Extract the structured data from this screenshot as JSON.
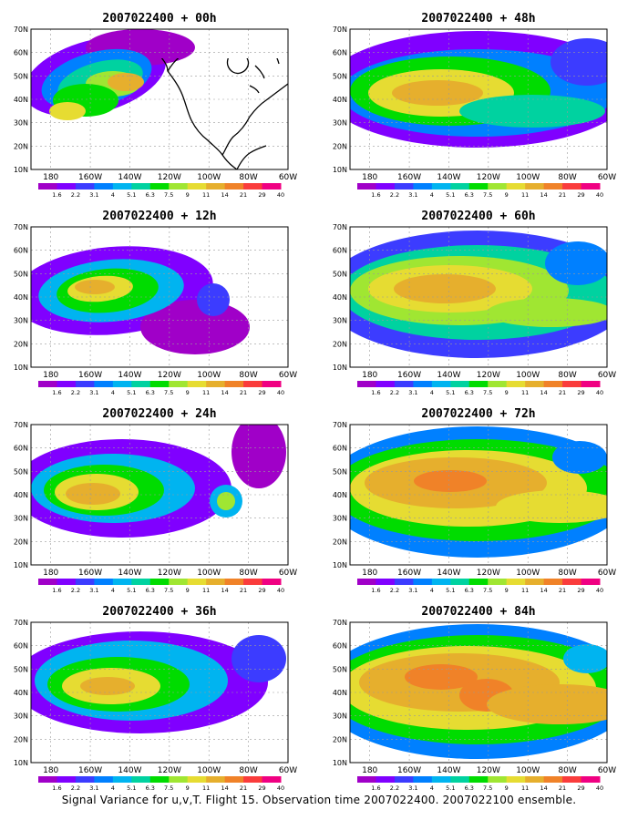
{
  "figure": {
    "caption": "Signal Variance for u,v,T. Flight 15. Observation time 2007022400. 2007022100 ensemble."
  },
  "panels": [
    {
      "title": "2007022400 + 00h",
      "lead_hours": 0
    },
    {
      "title": "2007022400 + 12h",
      "lead_hours": 12
    },
    {
      "title": "2007022400 + 24h",
      "lead_hours": 24
    },
    {
      "title": "2007022400 + 36h",
      "lead_hours": 36
    },
    {
      "title": "2007022400 + 48h",
      "lead_hours": 48
    },
    {
      "title": "2007022400 + 60h",
      "lead_hours": 60
    },
    {
      "title": "2007022400 + 72h",
      "lead_hours": 72
    },
    {
      "title": "2007022400 + 84h",
      "lead_hours": 84
    }
  ],
  "map": {
    "lat_labels": [
      "70N",
      "60N",
      "50N",
      "40N",
      "30N",
      "20N",
      "10N"
    ],
    "lat_values": [
      70,
      60,
      50,
      40,
      30,
      20,
      10
    ],
    "lon_labels": [
      "180",
      "160W",
      "140W",
      "120W",
      "100W",
      "80W",
      "60W"
    ],
    "lon_values": [
      180,
      160,
      140,
      120,
      100,
      80,
      60
    ],
    "grid": true
  },
  "colorbar": {
    "labels": [
      "1.6",
      "2.2",
      "3.1",
      "4",
      "5.1",
      "6.3",
      "7.5",
      "9",
      "11",
      "14",
      "21",
      "29",
      "40"
    ],
    "colors": [
      "#a000c8",
      "#8000ff",
      "#3c3cff",
      "#0080ff",
      "#00b4f0",
      "#00d2a0",
      "#00dc00",
      "#a0e632",
      "#e6dc32",
      "#e6af2d",
      "#f08228",
      "#fa3c3c",
      "#f00082"
    ]
  }
}
